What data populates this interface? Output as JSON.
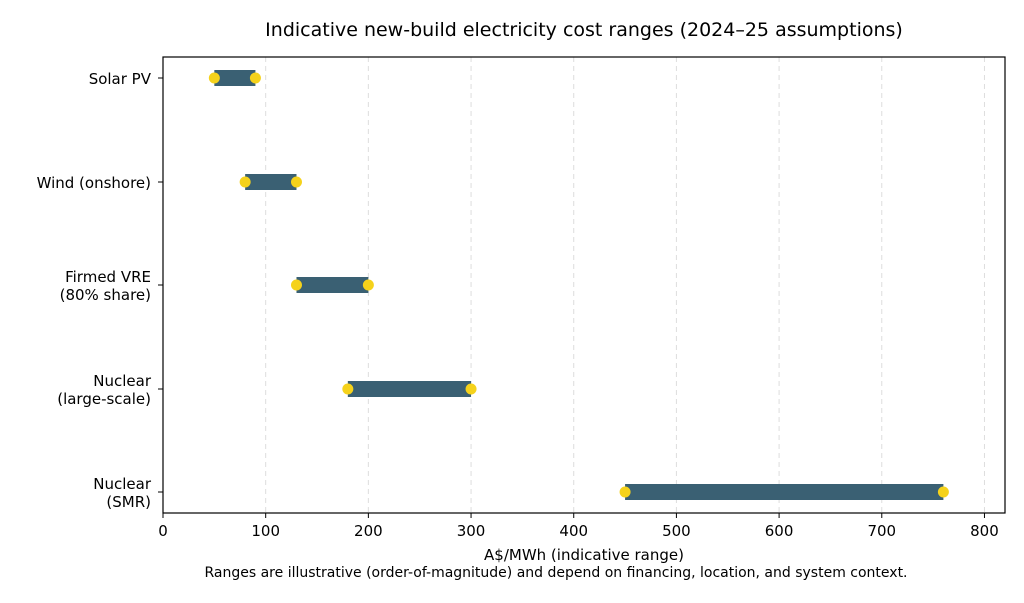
{
  "chart_data": {
    "type": "range-bar",
    "title": "Indicative new-build electricity cost ranges (2024–25 assumptions)",
    "xlabel": "A$/MWh (indicative range)",
    "ylabel": "",
    "xlim": [
      0,
      820
    ],
    "xticks": [
      0,
      100,
      200,
      300,
      400,
      500,
      600,
      700,
      800
    ],
    "grid": "x-dashed",
    "categories": [
      {
        "label": [
          "Solar PV"
        ],
        "low": 50,
        "high": 90
      },
      {
        "label": [
          "Wind (onshore)"
        ],
        "low": 80,
        "high": 130
      },
      {
        "label": [
          "Firmed VRE",
          "(80% share)"
        ],
        "low": 130,
        "high": 200
      },
      {
        "label": [
          "Nuclear",
          "(large-scale)"
        ],
        "low": 180,
        "high": 300
      },
      {
        "label": [
          "Nuclear",
          "(SMR)"
        ],
        "low": 450,
        "high": 760
      }
    ],
    "footnote": "Ranges are illustrative (order-of-magnitude) and depend on financing, location, and system context.",
    "colors": {
      "bar": "#3a6073",
      "endpoint": "#f5d21b",
      "grid": "#dddddd",
      "footnote": "#6b7280"
    }
  }
}
